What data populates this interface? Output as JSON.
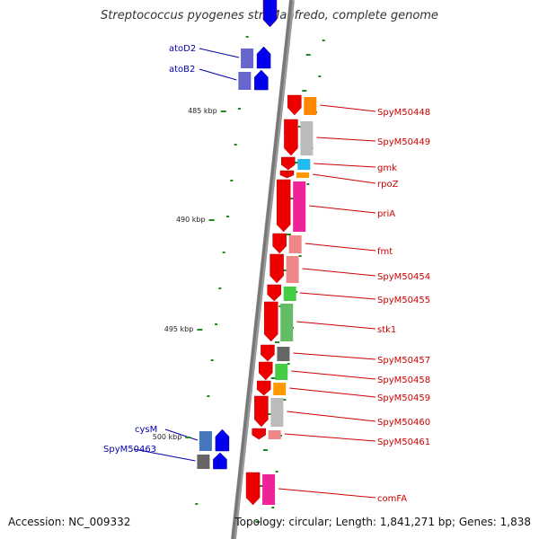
{
  "title": "Streptococcus pyogenes str. Manfredo, complete genome",
  "footer": {
    "accession": "Accession: NC_009332",
    "topology": "Topology: circular; Length: 1,841,271 bp; Genes: 1,838"
  },
  "colors": {
    "backbone": "#777777",
    "forward_gene": "#ee0000",
    "reverse_gene": "#0000ee",
    "forward_label": "#cc0000",
    "reverse_label": "#0000aa",
    "tick": "#228822"
  },
  "scale_labels": [
    "485 kbp",
    "490 kbp",
    "495 kbp",
    "500 kbp"
  ],
  "reverse_genes": [
    {
      "label": "atoD2"
    },
    {
      "label": "atoB2"
    },
    {
      "label": "cysM"
    },
    {
      "label": "SpyM50463"
    }
  ],
  "forward_genes": [
    {
      "label": "SpyM50448"
    },
    {
      "label": "SpyM50449"
    },
    {
      "label": "gmk"
    },
    {
      "label": "rpoZ"
    },
    {
      "label": "priA"
    },
    {
      "label": "fmt"
    },
    {
      "label": "SpyM50454"
    },
    {
      "label": "SpyM50455"
    },
    {
      "label": "stk1"
    },
    {
      "label": "SpyM50457"
    },
    {
      "label": "SpyM50458"
    },
    {
      "label": "SpyM50459"
    },
    {
      "label": "SpyM50460"
    },
    {
      "label": "SpyM50461"
    },
    {
      "label": "comFA"
    }
  ]
}
